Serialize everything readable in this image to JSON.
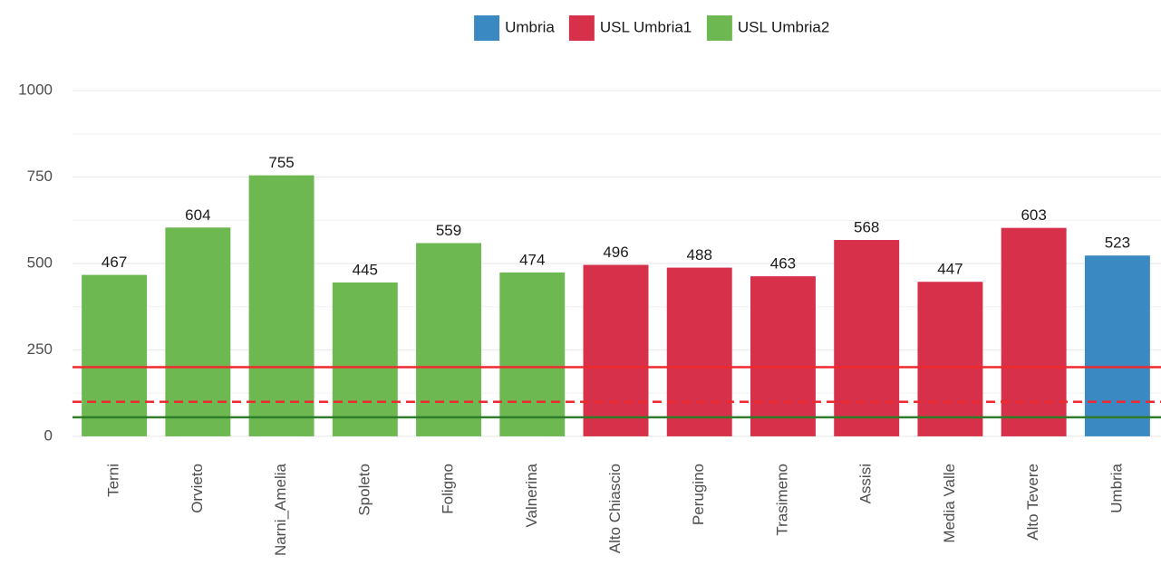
{
  "chart_data": {
    "type": "bar",
    "categories": [
      "Terni",
      "Orvieto",
      "Narni_Amelia",
      "Spoleto",
      "Foligno",
      "Valnerina",
      "Alto Chiascio",
      "Perugino",
      "Trasimeno",
      "Assisi",
      "Media Valle",
      "Alto Tevere",
      "Umbria"
    ],
    "series": [
      {
        "name": "Umbria",
        "color": "#3a89c2",
        "values": [
          null,
          null,
          null,
          null,
          null,
          null,
          null,
          null,
          null,
          null,
          null,
          null,
          523
        ]
      },
      {
        "name": "USL Umbria1",
        "color": "#d6304b",
        "values": [
          null,
          null,
          null,
          null,
          null,
          null,
          496,
          488,
          463,
          568,
          447,
          603,
          null
        ]
      },
      {
        "name": "USL Umbria2",
        "color": "#6db850",
        "values": [
          467,
          604,
          755,
          445,
          559,
          474,
          null,
          null,
          null,
          null,
          null,
          null,
          null
        ]
      }
    ],
    "ylim": [
      -50,
      1050
    ],
    "yticks": [
      0,
      250,
      500,
      750,
      1000
    ],
    "grid": true,
    "legend": "top",
    "reference_lines": [
      {
        "value": 200,
        "color": "#ee2a2f",
        "dashed": false
      },
      {
        "value": 100,
        "color": "#ee2a2f",
        "dashed": true
      },
      {
        "value": 55,
        "color": "#2f7d2a",
        "dashed": false
      }
    ]
  }
}
